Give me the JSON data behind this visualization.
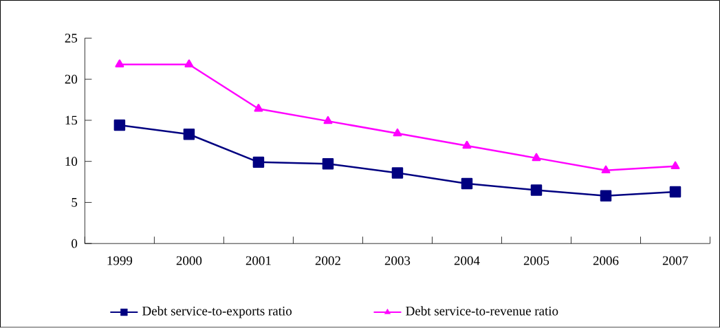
{
  "chart_data": {
    "type": "line",
    "categories": [
      "1999",
      "2000",
      "2001",
      "2002",
      "2003",
      "2004",
      "2005",
      "2006",
      "2007"
    ],
    "series": [
      {
        "name": "Debt service-to-exports ratio",
        "color": "#000080",
        "marker": "square",
        "values": [
          14.4,
          13.3,
          9.9,
          9.7,
          8.6,
          7.3,
          6.5,
          5.8,
          6.3
        ]
      },
      {
        "name": "Debt service-to-revenue ratio",
        "color": "#ff00ff",
        "marker": "triangle",
        "values": [
          21.8,
          21.8,
          16.4,
          14.9,
          13.4,
          11.9,
          10.4,
          8.9,
          9.4
        ]
      }
    ],
    "ylim": [
      0,
      25
    ],
    "yticks": [
      0,
      5,
      10,
      15,
      20,
      25
    ],
    "grid": false,
    "legend": "bottom",
    "line_style": "solid"
  }
}
